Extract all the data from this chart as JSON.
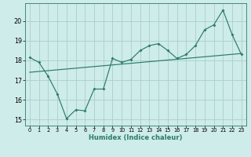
{
  "xlabel": "Humidex (Indice chaleur)",
  "background_color": "#ceecea",
  "grid_color": "#aacfcc",
  "line_color": "#2d7a6c",
  "xlim": [
    -0.5,
    23.5
  ],
  "ylim": [
    14.7,
    20.9
  ],
  "yticks": [
    15,
    16,
    17,
    18,
    19,
    20
  ],
  "xticks": [
    0,
    1,
    2,
    3,
    4,
    5,
    6,
    7,
    8,
    9,
    10,
    11,
    12,
    13,
    14,
    15,
    16,
    17,
    18,
    19,
    20,
    21,
    22,
    23
  ],
  "line1_x": [
    0,
    1,
    2,
    3,
    4,
    5,
    6,
    7,
    8,
    9,
    10,
    11,
    12,
    13,
    14,
    15,
    16,
    17,
    18,
    19,
    20,
    21,
    22,
    23
  ],
  "line1_y": [
    18.15,
    17.9,
    17.2,
    16.3,
    15.05,
    15.5,
    15.45,
    16.55,
    16.55,
    18.1,
    17.9,
    18.05,
    18.5,
    18.75,
    18.85,
    18.5,
    18.1,
    18.3,
    18.75,
    19.55,
    19.8,
    20.55,
    19.3,
    18.3
  ],
  "line2_x": [
    0,
    23
  ],
  "line2_y": [
    17.4,
    18.35
  ]
}
